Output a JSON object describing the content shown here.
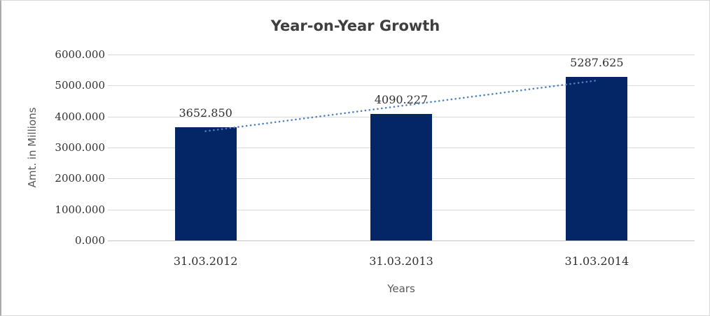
{
  "chart_data": {
    "type": "bar",
    "title": "Year-on-Year Growth",
    "xlabel": "Years",
    "ylabel": "Amt. in Millions",
    "categories": [
      "31.03.2012",
      "31.03.2013",
      "31.03.2014"
    ],
    "values": [
      3652.85,
      4090.227,
      5287.625
    ],
    "data_labels": [
      "3652.850",
      "4090.227",
      "5287.625"
    ],
    "ylim": [
      0,
      6000
    ],
    "ytick_step": 1000,
    "ytick_labels": [
      "0.000",
      "1000.000",
      "2000.000",
      "3000.000",
      "4000.000",
      "5000.000",
      "6000.000"
    ],
    "grid": true,
    "legend": "none",
    "trendline": {
      "type": "linear",
      "style": "dotted"
    },
    "colors": {
      "bar": "#042566",
      "trendline": "#4f81bd",
      "gridline": "#d9d9d9",
      "axis_line": "#c3c3c3",
      "title_text": "#3f3f3f",
      "tick_text": "#303030",
      "axis_title_text": "#595959",
      "background": "#ffffff"
    }
  }
}
